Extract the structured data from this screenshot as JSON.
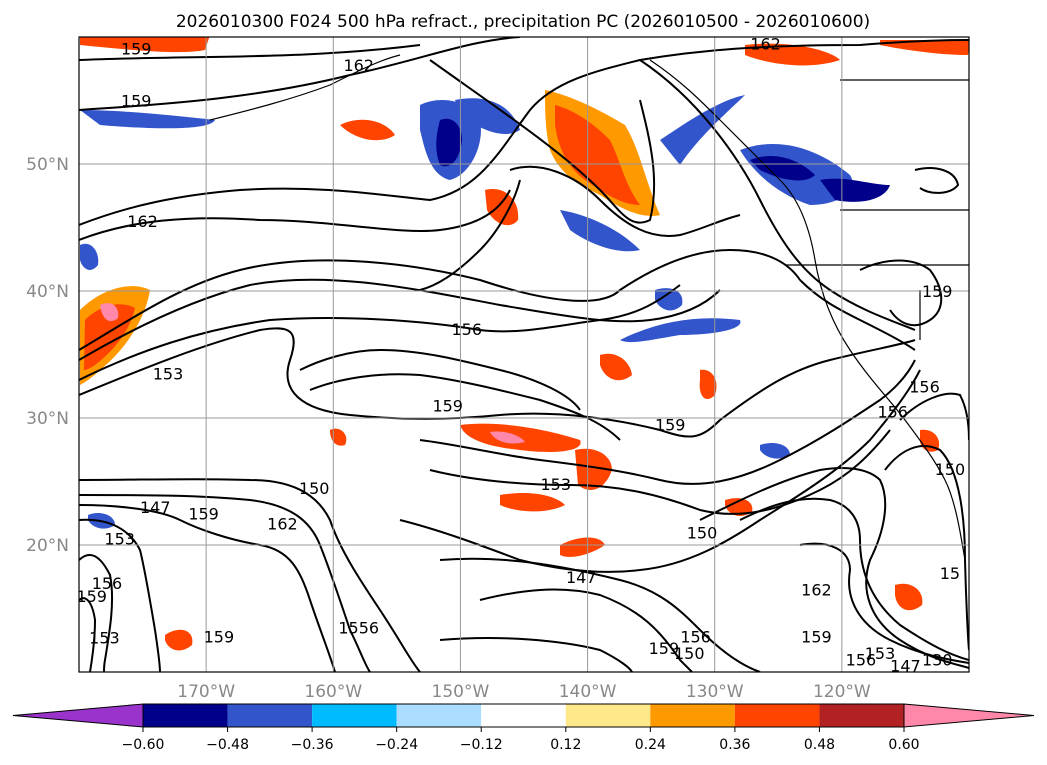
{
  "chart_data": {
    "type": "map-contour",
    "title": "2026010300 F024 500 hPa refract., precipitation PC (2026010500 - 2026010600)",
    "map": {
      "lon_range": [
        -180,
        -110
      ],
      "lat_range": [
        10,
        60
      ],
      "lat_ticks": [
        {
          "value": 20,
          "label": "20°N"
        },
        {
          "value": 30,
          "label": "30°N"
        },
        {
          "value": 40,
          "label": "40°N"
        },
        {
          "value": 50,
          "label": "50°N"
        }
      ],
      "lon_ticks": [
        {
          "value": -170,
          "label": "170°W"
        },
        {
          "value": -160,
          "label": "160°W"
        },
        {
          "value": -150,
          "label": "150°W"
        },
        {
          "value": -140,
          "label": "140°W"
        },
        {
          "value": -130,
          "label": "130°W"
        },
        {
          "value": -120,
          "label": "120°W"
        }
      ],
      "gridlines": true
    },
    "colorbar": {
      "boundaries": [
        -0.6,
        -0.48,
        -0.36,
        -0.24,
        -0.12,
        0.12,
        0.24,
        0.36,
        0.48,
        0.6
      ],
      "tick_labels": [
        "−0.60",
        "−0.48",
        "−0.36",
        "−0.24",
        "−0.12",
        "0.12",
        "0.24",
        "0.36",
        "0.48",
        "0.60"
      ],
      "under_color": "#9933cc",
      "over_color": "#ff88aa",
      "colors": [
        "#00008b",
        "#3355cc",
        "#00bbff",
        "#aaddff",
        "#ffffff",
        "#ffe88a",
        "#ff9900",
        "#ff4400",
        "#b22222"
      ]
    },
    "contour_labels": [
      {
        "text": "159",
        "lon": -175.5,
        "lat": 59.1
      },
      {
        "text": "162",
        "lon": -158.0,
        "lat": 57.8
      },
      {
        "text": "159",
        "lon": -175.5,
        "lat": 55.0
      },
      {
        "text": "162",
        "lon": -126.0,
        "lat": 59.5
      },
      {
        "text": "162",
        "lon": -175.0,
        "lat": 45.5
      },
      {
        "text": "153",
        "lon": -173.0,
        "lat": 33.5
      },
      {
        "text": "156",
        "lon": -149.5,
        "lat": 37.0
      },
      {
        "text": "159",
        "lon": -151.0,
        "lat": 31.0
      },
      {
        "text": "159",
        "lon": -133.5,
        "lat": 29.5
      },
      {
        "text": "153",
        "lon": -142.5,
        "lat": 24.8
      },
      {
        "text": "150",
        "lon": -161.5,
        "lat": 24.5
      },
      {
        "text": "147",
        "lon": -174.0,
        "lat": 23.0
      },
      {
        "text": "159",
        "lon": -170.2,
        "lat": 22.5
      },
      {
        "text": "162",
        "lon": -164.0,
        "lat": 21.7
      },
      {
        "text": "153",
        "lon": -176.8,
        "lat": 20.5
      },
      {
        "text": "150",
        "lon": -131.0,
        "lat": 21.0
      },
      {
        "text": "147",
        "lon": -140.5,
        "lat": 17.5
      },
      {
        "text": "162",
        "lon": -122.0,
        "lat": 16.5
      },
      {
        "text": "156",
        "lon": -177.8,
        "lat": 17.0
      },
      {
        "text": "159",
        "lon": -179.0,
        "lat": 16.0
      },
      {
        "text": "15",
        "lon": -111.5,
        "lat": 17.8
      },
      {
        "text": "1556",
        "lon": -158.0,
        "lat": 13.5
      },
      {
        "text": "159",
        "lon": -169.0,
        "lat": 12.8
      },
      {
        "text": "153",
        "lon": -178.0,
        "lat": 12.7
      },
      {
        "text": "159",
        "lon": -122.0,
        "lat": 12.8
      },
      {
        "text": "156",
        "lon": -131.5,
        "lat": 12.8
      },
      {
        "text": "159",
        "lon": -134.0,
        "lat": 11.9
      },
      {
        "text": "150",
        "lon": -132.0,
        "lat": 11.5
      },
      {
        "text": "156",
        "lon": -118.5,
        "lat": 11.0
      },
      {
        "text": "153",
        "lon": -117.0,
        "lat": 11.5
      },
      {
        "text": "147",
        "lon": -115.0,
        "lat": 10.5
      },
      {
        "text": "130",
        "lon": -112.5,
        "lat": 11.0
      },
      {
        "text": "159",
        "lon": -112.5,
        "lat": 40.0
      },
      {
        "text": "156",
        "lon": -116.0,
        "lat": 30.5
      },
      {
        "text": "156",
        "lon": -113.5,
        "lat": 32.5
      },
      {
        "text": "150",
        "lon": -111.5,
        "lat": 26.0
      }
    ]
  }
}
